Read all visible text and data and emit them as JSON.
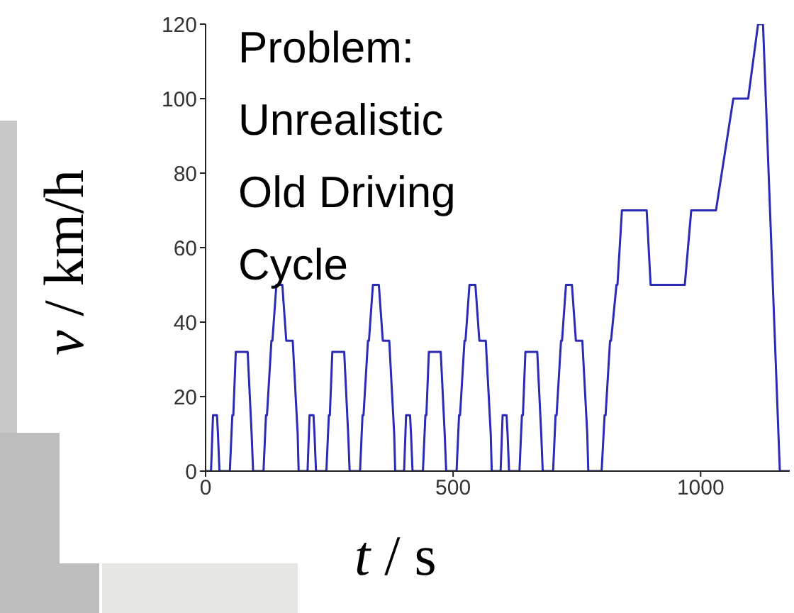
{
  "chart_data": {
    "type": "line",
    "xlabel": "t / s",
    "ylabel": "v / km/h",
    "annotations": [
      "Problem:\nUnrealistic\nOld Driving\nCycle"
    ],
    "xlim": [
      0,
      1180
    ],
    "xticks": [
      0,
      500,
      1000
    ],
    "ylim": [
      0,
      120
    ],
    "yticks": [
      0,
      20,
      40,
      60,
      80,
      100,
      120
    ],
    "grid": false,
    "legend": false,
    "marker": "none",
    "line_style": "solid",
    "series": [
      {
        "color": "#2a2ab4",
        "x": [
          0,
          11,
          15,
          23,
          25,
          28,
          49,
          54,
          56,
          61,
          85,
          93,
          96,
          117,
          122,
          124,
          133,
          135,
          143,
          155,
          163,
          176,
          186,
          188,
          195,
          206,
          210,
          218,
          220,
          223,
          244,
          249,
          251,
          256,
          280,
          288,
          291,
          312,
          317,
          319,
          328,
          330,
          338,
          350,
          358,
          371,
          381,
          383,
          390,
          401,
          405,
          413,
          415,
          418,
          439,
          444,
          446,
          451,
          475,
          483,
          486,
          507,
          512,
          514,
          523,
          525,
          533,
          545,
          553,
          566,
          576,
          578,
          585,
          596,
          600,
          608,
          610,
          613,
          634,
          639,
          641,
          646,
          670,
          678,
          681,
          702,
          707,
          709,
          718,
          720,
          728,
          740,
          748,
          761,
          771,
          773,
          780,
          800,
          806,
          808,
          817,
          819,
          830,
          832,
          841,
          891,
          899,
          968,
          981,
          1031,
          1066,
          1096,
          1116,
          1126,
          1160,
          1180
        ],
        "values": [
          0,
          0,
          15,
          15,
          10,
          0,
          0,
          15,
          15,
          32,
          32,
          10,
          0,
          0,
          15,
          15,
          35,
          35,
          50,
          50,
          35,
          35,
          10,
          0,
          0,
          0,
          15,
          15,
          10,
          0,
          0,
          15,
          15,
          32,
          32,
          10,
          0,
          0,
          15,
          15,
          35,
          35,
          50,
          50,
          35,
          35,
          10,
          0,
          0,
          0,
          15,
          15,
          10,
          0,
          0,
          15,
          15,
          32,
          32,
          10,
          0,
          0,
          15,
          15,
          35,
          35,
          50,
          50,
          35,
          35,
          10,
          0,
          0,
          0,
          15,
          15,
          10,
          0,
          0,
          15,
          15,
          32,
          32,
          10,
          0,
          0,
          15,
          15,
          35,
          35,
          50,
          50,
          35,
          35,
          10,
          0,
          0,
          0,
          15,
          15,
          35,
          35,
          50,
          50,
          70,
          70,
          50,
          50,
          70,
          70,
          100,
          100,
          120,
          120,
          0,
          0
        ]
      }
    ]
  }
}
